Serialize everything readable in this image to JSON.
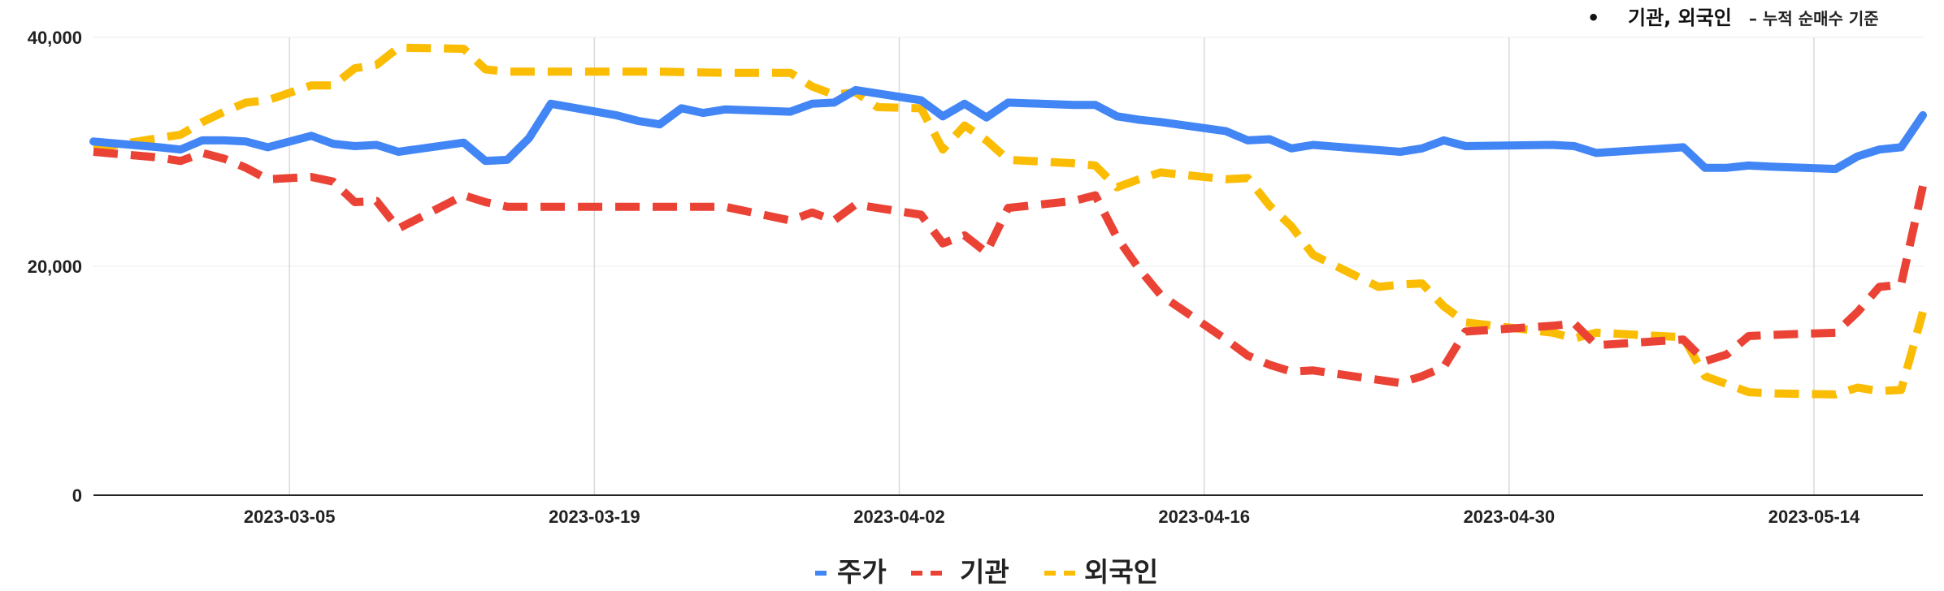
{
  "annotation": {
    "bullet": "•",
    "main": "기관, 외국인",
    "sub": " – 누적 순매수 기준"
  },
  "colors": {
    "price": "#4285F4",
    "institution": "#EA4335",
    "foreign": "#FBBC04",
    "grid_vertical": "#d9d9d9",
    "grid_horizontal": "#eeeeee",
    "axis": "#222222"
  },
  "chart_data": {
    "type": "line",
    "x_range": [
      "2023-02-24",
      "2023-05-19"
    ],
    "x_ticks": [
      "2023-03-05",
      "2023-03-19",
      "2023-04-02",
      "2023-04-16",
      "2023-04-30",
      "2023-05-14"
    ],
    "ylim": [
      0,
      40000
    ],
    "y_ticks": [
      0,
      20000,
      40000
    ],
    "y_tick_labels": [
      "0",
      "20,000",
      "40,000"
    ],
    "grid": true,
    "legend_position": "bottom",
    "series": [
      {
        "name": "주가",
        "color": "#4285F4",
        "style": "solid",
        "points": [
          [
            "2023-02-24",
            30900
          ],
          [
            "2023-02-27",
            30400
          ],
          [
            "2023-02-28",
            30200
          ],
          [
            "2023-03-01",
            31000
          ],
          [
            "2023-03-02",
            31000
          ],
          [
            "2023-03-03",
            30900
          ],
          [
            "2023-03-04",
            30400
          ],
          [
            "2023-03-06",
            31400
          ],
          [
            "2023-03-07",
            30700
          ],
          [
            "2023-03-08",
            30500
          ],
          [
            "2023-03-09",
            30600
          ],
          [
            "2023-03-10",
            30000
          ],
          [
            "2023-03-13",
            30800
          ],
          [
            "2023-03-14",
            29200
          ],
          [
            "2023-03-15",
            29300
          ],
          [
            "2023-03-16",
            31200
          ],
          [
            "2023-03-17",
            34200
          ],
          [
            "2023-03-20",
            33200
          ],
          [
            "2023-03-21",
            32700
          ],
          [
            "2023-03-22",
            32400
          ],
          [
            "2023-03-23",
            33800
          ],
          [
            "2023-03-24",
            33400
          ],
          [
            "2023-03-25",
            33700
          ],
          [
            "2023-03-28",
            33500
          ],
          [
            "2023-03-29",
            34200
          ],
          [
            "2023-03-30",
            34300
          ],
          [
            "2023-03-31",
            35400
          ],
          [
            "2023-04-03",
            34500
          ],
          [
            "2023-04-04",
            33100
          ],
          [
            "2023-04-05",
            34200
          ],
          [
            "2023-04-06",
            33000
          ],
          [
            "2023-04-07",
            34300
          ],
          [
            "2023-04-10",
            34100
          ],
          [
            "2023-04-11",
            34100
          ],
          [
            "2023-04-12",
            33100
          ],
          [
            "2023-04-13",
            32800
          ],
          [
            "2023-04-14",
            32600
          ],
          [
            "2023-04-17",
            31800
          ],
          [
            "2023-04-18",
            31000
          ],
          [
            "2023-04-19",
            31100
          ],
          [
            "2023-04-20",
            30300
          ],
          [
            "2023-04-21",
            30600
          ],
          [
            "2023-04-25",
            30000
          ],
          [
            "2023-04-26",
            30300
          ],
          [
            "2023-04-27",
            31000
          ],
          [
            "2023-04-28",
            30500
          ],
          [
            "2023-05-02",
            30600
          ],
          [
            "2023-05-03",
            30500
          ],
          [
            "2023-05-04",
            29900
          ],
          [
            "2023-05-08",
            30400
          ],
          [
            "2023-05-09",
            28600
          ],
          [
            "2023-05-10",
            28600
          ],
          [
            "2023-05-11",
            28800
          ],
          [
            "2023-05-12",
            28700
          ],
          [
            "2023-05-15",
            28500
          ],
          [
            "2023-05-16",
            29600
          ],
          [
            "2023-05-17",
            30200
          ],
          [
            "2023-05-18",
            30400
          ],
          [
            "2023-05-19",
            33200
          ]
        ]
      },
      {
        "name": "기관",
        "color": "#EA4335",
        "style": "dashed",
        "points": [
          [
            "2023-02-24",
            30000
          ],
          [
            "2023-02-27",
            29500
          ],
          [
            "2023-02-28",
            29200
          ],
          [
            "2023-03-01",
            29900
          ],
          [
            "2023-03-02",
            29400
          ],
          [
            "2023-03-03",
            28600
          ],
          [
            "2023-03-04",
            27600
          ],
          [
            "2023-03-06",
            27800
          ],
          [
            "2023-03-07",
            27400
          ],
          [
            "2023-03-08",
            25600
          ],
          [
            "2023-03-09",
            25700
          ],
          [
            "2023-03-10",
            23300
          ],
          [
            "2023-03-13",
            26200
          ],
          [
            "2023-03-14",
            25600
          ],
          [
            "2023-03-15",
            25200
          ],
          [
            "2023-03-17",
            25200
          ],
          [
            "2023-03-22",
            25200
          ],
          [
            "2023-03-25",
            25200
          ],
          [
            "2023-03-28",
            24000
          ],
          [
            "2023-03-29",
            24700
          ],
          [
            "2023-03-30",
            24000
          ],
          [
            "2023-03-31",
            25400
          ],
          [
            "2023-04-03",
            24500
          ],
          [
            "2023-04-04",
            22000
          ],
          [
            "2023-04-05",
            22700
          ],
          [
            "2023-04-06",
            21200
          ],
          [
            "2023-04-07",
            25100
          ],
          [
            "2023-04-10",
            25700
          ],
          [
            "2023-04-11",
            26200
          ],
          [
            "2023-04-12",
            22500
          ],
          [
            "2023-04-13",
            19800
          ],
          [
            "2023-04-14",
            17500
          ],
          [
            "2023-04-17",
            13600
          ],
          [
            "2023-04-18",
            12200
          ],
          [
            "2023-04-19",
            11400
          ],
          [
            "2023-04-20",
            10800
          ],
          [
            "2023-04-21",
            10900
          ],
          [
            "2023-04-25",
            9800
          ],
          [
            "2023-04-26",
            10400
          ],
          [
            "2023-04-27",
            11200
          ],
          [
            "2023-04-28",
            14300
          ],
          [
            "2023-05-02",
            14800
          ],
          [
            "2023-05-03",
            15000
          ],
          [
            "2023-05-04",
            13100
          ],
          [
            "2023-05-08",
            13600
          ],
          [
            "2023-05-09",
            11700
          ],
          [
            "2023-05-10",
            12300
          ],
          [
            "2023-05-11",
            13900
          ],
          [
            "2023-05-12",
            14000
          ],
          [
            "2023-05-15",
            14200
          ],
          [
            "2023-05-16",
            16000
          ],
          [
            "2023-05-17",
            18200
          ],
          [
            "2023-05-18",
            18400
          ],
          [
            "2023-05-19",
            27000
          ]
        ]
      },
      {
        "name": "외국인",
        "color": "#FBBC04",
        "style": "dashed",
        "points": [
          [
            "2023-02-24",
            30300
          ],
          [
            "2023-02-28",
            31500
          ],
          [
            "2023-03-01",
            32600
          ],
          [
            "2023-03-02",
            33500
          ],
          [
            "2023-03-03",
            34300
          ],
          [
            "2023-03-04",
            34500
          ],
          [
            "2023-03-06",
            35800
          ],
          [
            "2023-03-07",
            35800
          ],
          [
            "2023-03-08",
            37300
          ],
          [
            "2023-03-09",
            37600
          ],
          [
            "2023-03-10",
            39100
          ],
          [
            "2023-03-13",
            39000
          ],
          [
            "2023-03-14",
            37200
          ],
          [
            "2023-03-15",
            37000
          ],
          [
            "2023-03-17",
            37000
          ],
          [
            "2023-03-22",
            37000
          ],
          [
            "2023-03-25",
            36900
          ],
          [
            "2023-03-28",
            36900
          ],
          [
            "2023-03-29",
            35700
          ],
          [
            "2023-03-30",
            35000
          ],
          [
            "2023-03-31",
            35200
          ],
          [
            "2023-04-01",
            33900
          ],
          [
            "2023-04-03",
            33800
          ],
          [
            "2023-04-04",
            30200
          ],
          [
            "2023-04-05",
            32300
          ],
          [
            "2023-04-06",
            31000
          ],
          [
            "2023-04-07",
            29300
          ],
          [
            "2023-04-10",
            29000
          ],
          [
            "2023-04-11",
            28800
          ],
          [
            "2023-04-12",
            26900
          ],
          [
            "2023-04-13",
            27600
          ],
          [
            "2023-04-14",
            28200
          ],
          [
            "2023-04-17",
            27600
          ],
          [
            "2023-04-18",
            27700
          ],
          [
            "2023-04-19",
            25300
          ],
          [
            "2023-04-20",
            23500
          ],
          [
            "2023-04-21",
            21000
          ],
          [
            "2023-04-24",
            18200
          ],
          [
            "2023-04-25",
            18400
          ],
          [
            "2023-04-26",
            18500
          ],
          [
            "2023-04-27",
            16500
          ],
          [
            "2023-04-28",
            15100
          ],
          [
            "2023-05-02",
            14200
          ],
          [
            "2023-05-03",
            13700
          ],
          [
            "2023-05-04",
            14200
          ],
          [
            "2023-05-08",
            13800
          ],
          [
            "2023-05-09",
            10400
          ],
          [
            "2023-05-10",
            9700
          ],
          [
            "2023-05-11",
            9000
          ],
          [
            "2023-05-12",
            8900
          ],
          [
            "2023-05-15",
            8800
          ],
          [
            "2023-05-16",
            9400
          ],
          [
            "2023-05-17",
            9100
          ],
          [
            "2023-05-18",
            9200
          ],
          [
            "2023-05-19",
            16000
          ]
        ]
      }
    ]
  }
}
